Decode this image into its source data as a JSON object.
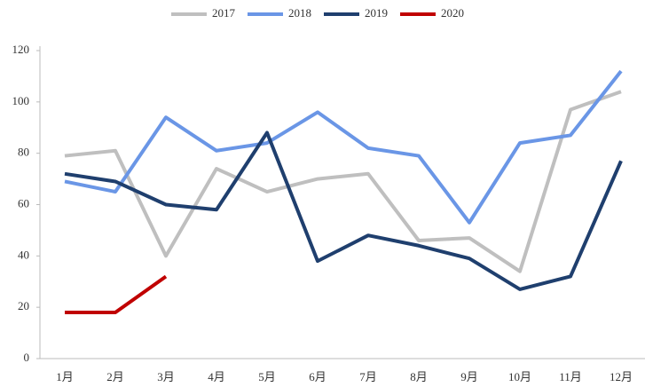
{
  "chart_data": {
    "type": "line",
    "categories": [
      "1月",
      "2月",
      "3月",
      "4月",
      "5月",
      "6月",
      "7月",
      "8月",
      "9月",
      "10月",
      "11月",
      "12月"
    ],
    "series": [
      {
        "name": "2017",
        "color": "#bfbfbf",
        "values": [
          79,
          81,
          40,
          74,
          65,
          70,
          72,
          46,
          47,
          34,
          97,
          104
        ]
      },
      {
        "name": "2018",
        "color": "#6a96e6",
        "values": [
          69,
          65,
          94,
          81,
          84,
          96,
          82,
          79,
          53,
          84,
          87,
          112
        ]
      },
      {
        "name": "2019",
        "color": "#1f3f6e",
        "values": [
          72,
          69,
          60,
          58,
          88,
          38,
          48,
          44,
          39,
          27,
          32,
          77
        ]
      },
      {
        "name": "2020",
        "color": "#c00000",
        "values": [
          18,
          18,
          32,
          null,
          null,
          null,
          null,
          null,
          null,
          null,
          null,
          null
        ]
      }
    ],
    "ylim": [
      0,
      120
    ],
    "yticks": [
      0,
      20,
      40,
      60,
      80,
      100,
      120
    ],
    "grid": false,
    "legend": "top"
  }
}
